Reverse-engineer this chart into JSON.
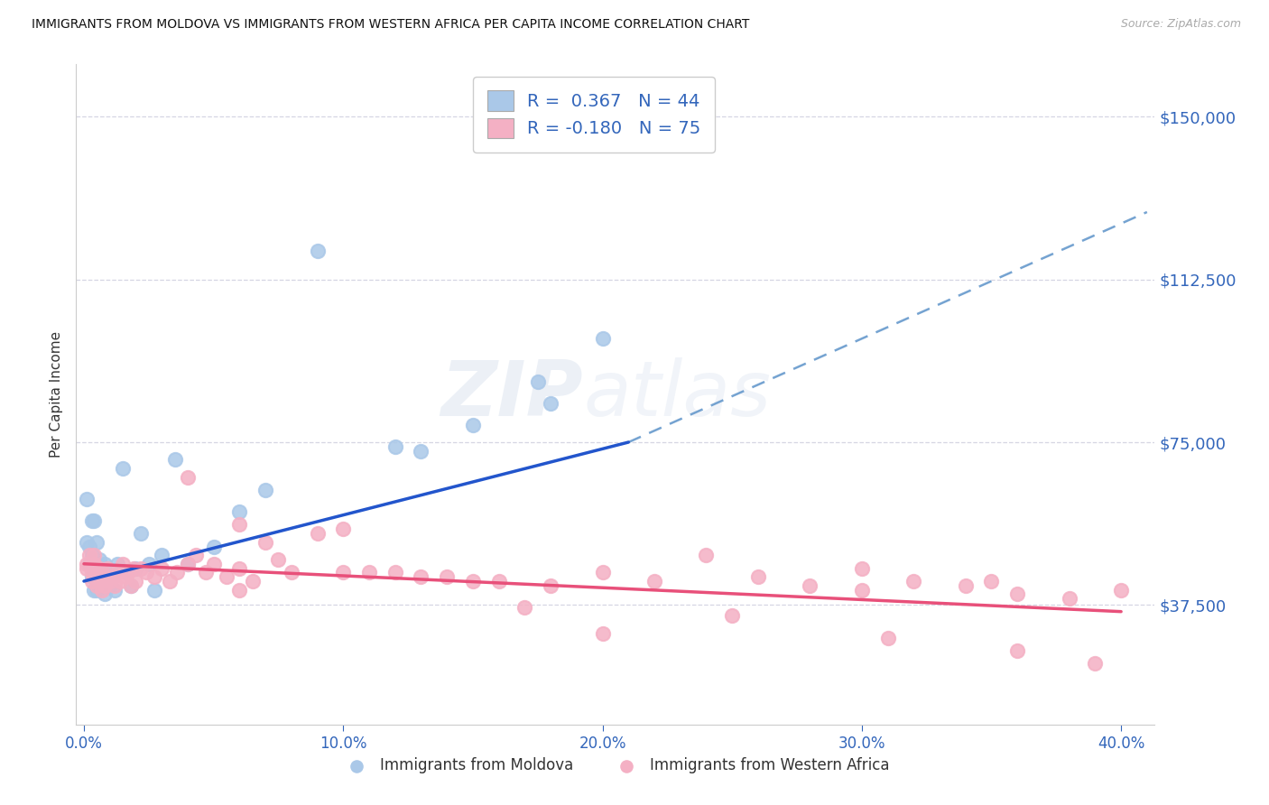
{
  "title": "IMMIGRANTS FROM MOLDOVA VS IMMIGRANTS FROM WESTERN AFRICA PER CAPITA INCOME CORRELATION CHART",
  "source": "Source: ZipAtlas.com",
  "ylabel": "Per Capita Income",
  "xlim": [
    -0.003,
    0.413
  ],
  "ylim": [
    10000,
    162000
  ],
  "yticks": [
    37500,
    75000,
    112500,
    150000
  ],
  "ytick_labels": [
    "$37,500",
    "$75,000",
    "$112,500",
    "$150,000"
  ],
  "xticks": [
    0.0,
    0.1,
    0.2,
    0.3,
    0.4
  ],
  "xtick_labels": [
    "0.0%",
    "10.0%",
    "20.0%",
    "30.0%",
    "40.0%"
  ],
  "moldova_color": "#aac8e8",
  "western_africa_color": "#f4b0c4",
  "moldova_line_color": "#2255cc",
  "western_africa_line_color": "#e8507a",
  "dashed_line_color": "#6699cc",
  "axis_color": "#3366bb",
  "grid_color": "#ccccdd",
  "background_color": "#ffffff",
  "moldova_scatter_x": [
    0.001,
    0.001,
    0.002,
    0.002,
    0.003,
    0.003,
    0.003,
    0.004,
    0.004,
    0.004,
    0.005,
    0.005,
    0.005,
    0.006,
    0.006,
    0.007,
    0.007,
    0.008,
    0.008,
    0.009,
    0.01,
    0.011,
    0.012,
    0.013,
    0.015,
    0.016,
    0.018,
    0.02,
    0.022,
    0.025,
    0.027,
    0.03,
    0.035,
    0.04,
    0.05,
    0.06,
    0.07,
    0.09,
    0.12,
    0.15,
    0.175,
    0.2,
    0.18,
    0.13
  ],
  "moldova_scatter_y": [
    52000,
    62000,
    47000,
    51000,
    44000,
    49000,
    57000,
    41000,
    46000,
    57000,
    41000,
    46000,
    52000,
    43000,
    48000,
    42000,
    45000,
    40000,
    47000,
    43000,
    42000,
    44000,
    41000,
    47000,
    69000,
    45000,
    42000,
    46000,
    54000,
    47000,
    41000,
    49000,
    71000,
    47000,
    51000,
    59000,
    64000,
    119000,
    74000,
    79000,
    89000,
    99000,
    84000,
    73000
  ],
  "waf_scatter_x": [
    0.001,
    0.001,
    0.002,
    0.003,
    0.003,
    0.004,
    0.004,
    0.005,
    0.005,
    0.006,
    0.006,
    0.007,
    0.007,
    0.008,
    0.008,
    0.009,
    0.01,
    0.011,
    0.012,
    0.013,
    0.014,
    0.015,
    0.016,
    0.017,
    0.018,
    0.019,
    0.02,
    0.022,
    0.024,
    0.027,
    0.03,
    0.033,
    0.036,
    0.04,
    0.043,
    0.047,
    0.05,
    0.055,
    0.06,
    0.065,
    0.07,
    0.08,
    0.09,
    0.1,
    0.12,
    0.14,
    0.16,
    0.18,
    0.2,
    0.22,
    0.24,
    0.26,
    0.28,
    0.3,
    0.32,
    0.34,
    0.36,
    0.38,
    0.4,
    0.06,
    0.075,
    0.11,
    0.15,
    0.2,
    0.25,
    0.3,
    0.35,
    0.04,
    0.06,
    0.1,
    0.13,
    0.17,
    0.31,
    0.36,
    0.39
  ],
  "waf_scatter_y": [
    47000,
    46000,
    49000,
    45000,
    43000,
    49000,
    47000,
    44000,
    42000,
    46000,
    43000,
    45000,
    41000,
    44000,
    42000,
    46000,
    43000,
    44000,
    42000,
    45000,
    43000,
    47000,
    44000,
    45000,
    42000,
    46000,
    43000,
    46000,
    45000,
    44000,
    46000,
    43000,
    45000,
    67000,
    49000,
    45000,
    47000,
    44000,
    46000,
    43000,
    52000,
    45000,
    54000,
    45000,
    45000,
    44000,
    43000,
    42000,
    45000,
    43000,
    49000,
    44000,
    42000,
    41000,
    43000,
    42000,
    40000,
    39000,
    41000,
    56000,
    48000,
    45000,
    43000,
    31000,
    35000,
    46000,
    43000,
    47000,
    41000,
    55000,
    44000,
    37000,
    30000,
    27000,
    24000
  ],
  "mol_line_x0": 0.0,
  "mol_line_x1": 0.21,
  "mol_line_y0": 43000,
  "mol_line_y1": 75000,
  "dash_line_x0": 0.21,
  "dash_line_x1": 0.41,
  "dash_line_y0": 75000,
  "dash_line_y1": 128000,
  "waf_line_x0": 0.0,
  "waf_line_x1": 0.4,
  "waf_line_y0": 47000,
  "waf_line_y1": 36000
}
